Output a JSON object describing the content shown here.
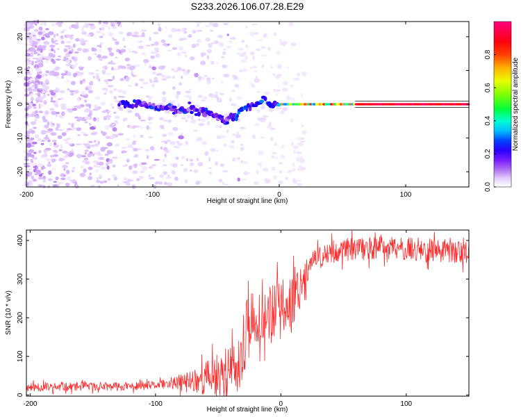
{
  "figure": {
    "title": "S233.2026.106.07.28.E29"
  },
  "chart_data": [
    {
      "type": "heatmap",
      "title": "S233.2026.106.07.28.E29",
      "xlabel": "Height of straight line (km)",
      "ylabel": "Frequency (Hz)",
      "xlim": [
        -200,
        150
      ],
      "ylim": [
        -24.5,
        24.5
      ],
      "xticks": [
        -200,
        -100,
        0,
        100
      ],
      "yticks": [
        20,
        10,
        0,
        -10,
        -20
      ],
      "ridge": {
        "x": [
          -120,
          -110,
          -100,
          -90,
          -80,
          -70,
          -60,
          -50,
          -45,
          -40,
          -35,
          -30,
          -25,
          -20,
          -15,
          -12,
          -10,
          -8,
          -5,
          -2,
          0,
          5,
          10,
          20,
          40,
          60,
          100,
          150
        ],
        "freq": [
          0,
          0,
          -0.5,
          -1,
          -1.5,
          -1.5,
          -2.5,
          -3.5,
          -4.5,
          -4.5,
          -3.5,
          -2,
          -1,
          -0.5,
          0.5,
          1.5,
          1,
          0,
          -0.5,
          0.5,
          0,
          0,
          0,
          0,
          0,
          0,
          0,
          0
        ]
      },
      "colorbar": {
        "label": "Normalized spectral amplitude",
        "range": [
          0,
          1
        ],
        "ticks": [
          "0.0",
          "0.2",
          "0.4",
          "0.6",
          "0.8"
        ],
        "colormap": [
          "#ffffff",
          "#e6d0ff",
          "#c89cf6",
          "#8a2be2",
          "#3b00ff",
          "#0000ff",
          "#00d8ff",
          "#00ff6a",
          "#7dff00",
          "#ffff00",
          "#ff8000",
          "#ff0000",
          "#ff0080"
        ]
      }
    },
    {
      "type": "line",
      "xlabel": "Height of straight line (km)",
      "ylabel": "SNR (10 * v/v)",
      "xlim": [
        -203,
        150
      ],
      "ylim": [
        -3,
        427
      ],
      "xticks": [
        -200,
        -100,
        0,
        100
      ],
      "yticks": [
        400,
        300,
        200,
        100,
        0
      ],
      "color": "#ff2b2b",
      "series": [
        {
          "name": "SNR",
          "x": [
            -200,
            -180,
            -160,
            -140,
            -120,
            -100,
            -90,
            -80,
            -70,
            -60,
            -50,
            -40,
            -35,
            -30,
            -28,
            -25,
            -22,
            -20,
            -15,
            -10,
            -5,
            0,
            5,
            10,
            15,
            20,
            25,
            30,
            40,
            50,
            60,
            80,
            100,
            120,
            150
          ],
          "y": [
            20,
            20,
            22,
            22,
            22,
            25,
            28,
            32,
            38,
            45,
            55,
            65,
            70,
            60,
            180,
            170,
            200,
            205,
            210,
            215,
            215,
            220,
            230,
            260,
            290,
            320,
            340,
            355,
            370,
            375,
            378,
            380,
            378,
            375,
            370
          ]
        }
      ]
    }
  ]
}
